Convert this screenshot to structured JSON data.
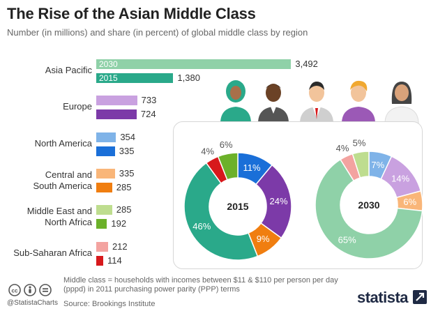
{
  "header": {
    "title": "The Rise of the Asian Middle Class",
    "subtitle": "Number (in millions) and share (in percent) of global middle class by region"
  },
  "chart_data": [
    {
      "type": "bar",
      "orientation": "horizontal",
      "categories": [
        "Asia Pacific",
        "Europe",
        "North America",
        "Central and South America",
        "Middle East and North Africa",
        "Sub-Saharan Africa"
      ],
      "category_lines": [
        [
          "Asia Pacific"
        ],
        [
          "Europe"
        ],
        [
          "North America"
        ],
        [
          "Central and",
          "South America"
        ],
        [
          "Middle East and",
          "North Africa"
        ],
        [
          "Sub-Saharan Africa"
        ]
      ],
      "series": [
        {
          "name": "2030",
          "values": [
            3492,
            733,
            354,
            335,
            285,
            212
          ],
          "value_labels": [
            "3,492",
            "733",
            "354",
            "335",
            "285",
            "212"
          ]
        },
        {
          "name": "2015",
          "values": [
            1380,
            724,
            335,
            285,
            192,
            114
          ],
          "value_labels": [
            "1,380",
            "724",
            "335",
            "285",
            "192",
            "114"
          ]
        }
      ],
      "colors": {
        "2030": [
          "#8fd1a8",
          "#c9a1e0",
          "#7fb3e8",
          "#f9b679",
          "#bedd8f",
          "#f3a3a0"
        ],
        "2015": [
          "#2aa98a",
          "#7c3aa8",
          "#1a6fd8",
          "#f07e10",
          "#6cb12a",
          "#d7191c"
        ]
      },
      "xlim": [
        0,
        3500
      ]
    },
    {
      "type": "pie",
      "donut": true,
      "center_label": "2015",
      "slices": [
        {
          "label": "11%",
          "value": 11,
          "color": "#1a6fd8"
        },
        {
          "label": "24%",
          "value": 24,
          "color": "#7c3aa8"
        },
        {
          "label": "9%",
          "value": 9,
          "color": "#f07e10"
        },
        {
          "label": "46%",
          "value": 46,
          "color": "#2aa98a"
        },
        {
          "label": "4%",
          "value": 4,
          "color": "#d7191c"
        },
        {
          "label": "6%",
          "value": 6,
          "color": "#6cb12a"
        }
      ]
    },
    {
      "type": "pie",
      "donut": true,
      "center_label": "2030",
      "slices": [
        {
          "label": "7%",
          "value": 7,
          "color": "#7fb3e8"
        },
        {
          "label": "14%",
          "value": 14,
          "color": "#c9a1e0"
        },
        {
          "label": "6%",
          "value": 6,
          "color": "#f9b679"
        },
        {
          "label": "65%",
          "value": 65,
          "color": "#8fd1a8"
        },
        {
          "label": "4%",
          "value": 4,
          "color": "#f3a3a0"
        },
        {
          "label": "5%",
          "value": 5,
          "color": "#bedd8f"
        }
      ]
    }
  ],
  "footer": {
    "note_line1": "Middle class = households with incomes between $11 & $110 per person per day",
    "note_line2": "(pppd) in 2011 purchasing power parity (PPP) terms",
    "source": "Source: Brookings Institute",
    "handle": "@StatistaCharts",
    "brand": "statista"
  },
  "icons": [
    "creative-commons-icon",
    "attribution-icon",
    "no-derivatives-icon",
    "statista-logo-icon",
    "people-illustration"
  ]
}
